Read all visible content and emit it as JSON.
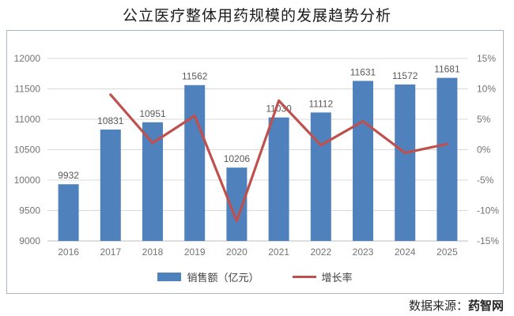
{
  "title": "公立医疗整体用药规模的发展趋势分析",
  "source": {
    "prefix": "数据来源：",
    "name": "药智网"
  },
  "colors": {
    "bar": "#4F81BD",
    "line": "#C0504D",
    "grid": "#D9D9D9",
    "axis_line": "#BFBFBF",
    "tick_text": "#737373",
    "label_text": "#595959",
    "frame_border": "#A9B6C2",
    "title_text": "#1A1A1A"
  },
  "chart_data": {
    "type": "bar+line combo",
    "title": "公立医疗整体用药规模的发展趋势分析",
    "categories": [
      "2016",
      "2017",
      "2018",
      "2019",
      "2020",
      "2021",
      "2022",
      "2023",
      "2024",
      "2025"
    ],
    "series": [
      {
        "name": "销售额（亿元）",
        "type": "bar",
        "axis": "left",
        "values": [
          9932,
          10831,
          10951,
          11562,
          10206,
          11030,
          11112,
          11631,
          11572,
          11681
        ]
      },
      {
        "name": "增长率",
        "type": "line",
        "axis": "right",
        "values": [
          null,
          9.05,
          1.11,
          5.58,
          -11.73,
          8.07,
          0.74,
          4.67,
          -0.51,
          0.94
        ]
      }
    ],
    "left_axis": {
      "min": 9000,
      "max": 12000,
      "step": 500,
      "tick_labels": [
        "12000",
        "11500",
        "11000",
        "10500",
        "10000",
        "9500",
        "9000"
      ]
    },
    "right_axis": {
      "min": -15,
      "max": 15,
      "step": 5,
      "tick_labels": [
        "15%",
        "10%",
        "5%",
        "0%",
        "-5%",
        "-10%",
        "-15%"
      ]
    },
    "bar_value_labels_visible": true,
    "grid": "horizontal",
    "legend_position": "bottom"
  }
}
